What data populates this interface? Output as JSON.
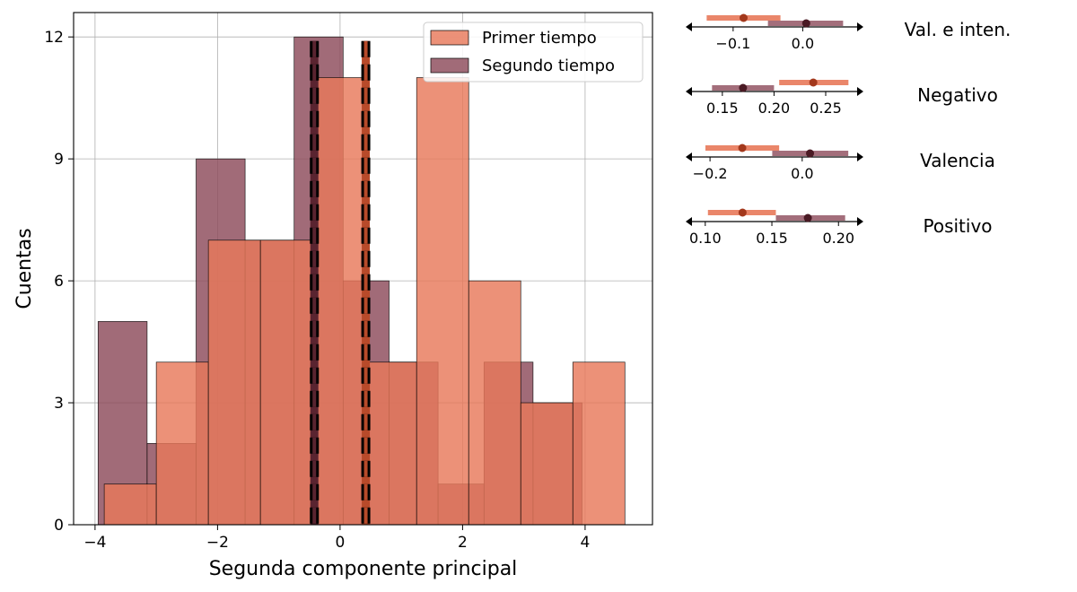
{
  "chart_data": [
    {
      "type": "histogram",
      "xlabel": "Segunda componente principal",
      "ylabel": "Cuentas",
      "xlim": [
        -4.35,
        5.1
      ],
      "ylim": [
        0,
        12.6
      ],
      "xticks": [
        -4,
        -2,
        0,
        2,
        4
      ],
      "yticks": [
        0,
        3,
        6,
        9,
        12
      ],
      "grid": true,
      "legend_position": "top-right",
      "series": [
        {
          "name": "Segundo tiempo",
          "color": "#8c4a5a",
          "bins": [
            {
              "x0": -3.95,
              "x1": -3.15,
              "count": 5
            },
            {
              "x0": -3.15,
              "x1": -2.35,
              "count": 2
            },
            {
              "x0": -2.35,
              "x1": -1.55,
              "count": 9
            },
            {
              "x0": -1.55,
              "x1": -0.75,
              "count": 7
            },
            {
              "x0": -0.75,
              "x1": 0.05,
              "count": 12
            },
            {
              "x0": 0.05,
              "x1": 0.8,
              "count": 6
            },
            {
              "x0": 0.8,
              "x1": 1.6,
              "count": 4
            },
            {
              "x0": 1.6,
              "x1": 2.35,
              "count": 1
            },
            {
              "x0": 2.35,
              "x1": 3.15,
              "count": 4
            },
            {
              "x0": 3.15,
              "x1": 3.95,
              "count": 3
            }
          ]
        },
        {
          "name": "Primer tiempo",
          "color": "#e8795a",
          "bins": [
            {
              "x0": -3.85,
              "x1": -3.0,
              "count": 1
            },
            {
              "x0": -3.0,
              "x1": -2.15,
              "count": 4
            },
            {
              "x0": -2.15,
              "x1": -1.3,
              "count": 7
            },
            {
              "x0": -1.3,
              "x1": -0.45,
              "count": 7
            },
            {
              "x0": -0.45,
              "x1": 0.4,
              "count": 11
            },
            {
              "x0": 0.4,
              "x1": 1.25,
              "count": 4
            },
            {
              "x0": 1.25,
              "x1": 2.1,
              "count": 11
            },
            {
              "x0": 2.1,
              "x1": 2.95,
              "count": 6
            },
            {
              "x0": 2.95,
              "x1": 3.8,
              "count": 3
            },
            {
              "x0": 3.8,
              "x1": 4.65,
              "count": 4
            }
          ]
        }
      ],
      "vlines": [
        {
          "x": -0.42,
          "color": "#5a2430"
        },
        {
          "x": 0.42,
          "color": "#b84a2a"
        }
      ]
    },
    {
      "type": "interval",
      "title": "Val. e inten.",
      "xlim": [
        -0.163,
        0.082
      ],
      "xticks": [
        -0.1,
        0.0
      ],
      "tick_labels": [
        "−0.1",
        "0.0"
      ],
      "intervals": [
        {
          "series": "Primer tiempo",
          "lo": -0.138,
          "hi": -0.032,
          "mean": -0.085,
          "color": "#e8795a"
        },
        {
          "series": "Segundo tiempo",
          "lo": -0.05,
          "hi": 0.058,
          "mean": 0.005,
          "color": "#8c4a5a"
        }
      ]
    },
    {
      "type": "interval",
      "title": "Negativo",
      "xlim": [
        0.118,
        0.283
      ],
      "xticks": [
        0.15,
        0.2,
        0.25
      ],
      "tick_labels": [
        "0.15",
        "0.20",
        "0.25"
      ],
      "intervals": [
        {
          "series": "Primer tiempo",
          "lo": 0.205,
          "hi": 0.272,
          "mean": 0.238,
          "color": "#e8795a"
        },
        {
          "series": "Segundo tiempo",
          "lo": 0.14,
          "hi": 0.2,
          "mean": 0.17,
          "color": "#8c4a5a"
        }
      ]
    },
    {
      "type": "interval",
      "title": "Valencia",
      "xlim": [
        -0.245,
        0.125
      ],
      "xticks": [
        -0.2,
        0.0
      ],
      "tick_labels": [
        "−0.2",
        "0.0"
      ],
      "intervals": [
        {
          "series": "Primer tiempo",
          "lo": -0.21,
          "hi": -0.05,
          "mean": -0.13,
          "color": "#e8795a"
        },
        {
          "series": "Segundo tiempo",
          "lo": -0.065,
          "hi": 0.1,
          "mean": 0.017,
          "color": "#8c4a5a"
        }
      ]
    },
    {
      "type": "interval",
      "title": "Positivo",
      "xlim": [
        0.088,
        0.216
      ],
      "xticks": [
        0.1,
        0.15,
        0.2
      ],
      "tick_labels": [
        "0.10",
        "0.15",
        "0.20"
      ],
      "intervals": [
        {
          "series": "Primer tiempo",
          "lo": 0.102,
          "hi": 0.153,
          "mean": 0.128,
          "color": "#e8795a"
        },
        {
          "series": "Segundo tiempo",
          "lo": 0.153,
          "hi": 0.205,
          "mean": 0.177,
          "color": "#8c4a5a"
        }
      ]
    }
  ]
}
